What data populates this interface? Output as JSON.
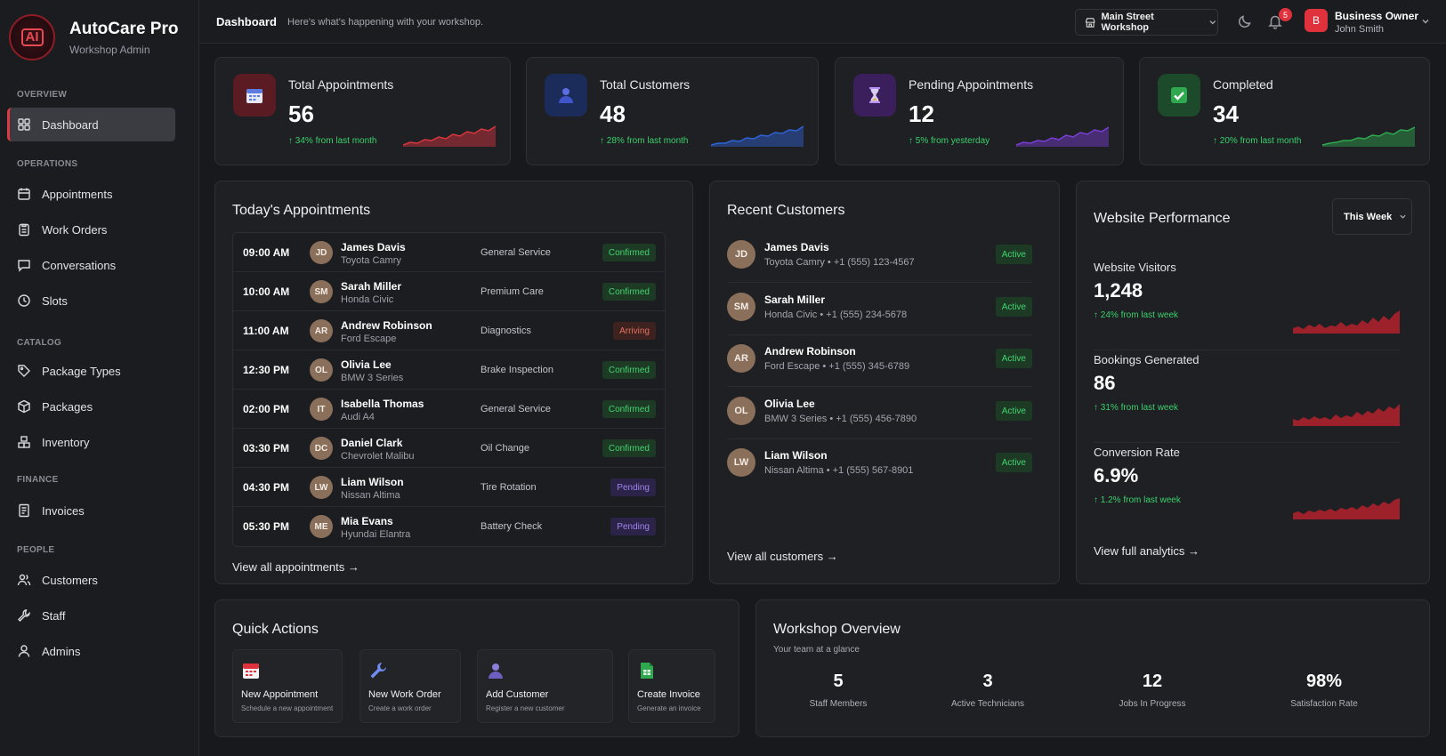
{
  "brand": {
    "logo_text": "AI",
    "title": "AutoCare Pro",
    "subtitle": "Workshop Admin"
  },
  "sidebar": {
    "sections": {
      "overview": "OVERVIEW",
      "operations": "OPERATIONS",
      "catalog": "CATALOG",
      "finance": "FINANCE",
      "people": "PEOPLE"
    },
    "items": {
      "dashboard": "Dashboard",
      "appointments": "Appointments",
      "work_orders": "Work Orders",
      "conversations": "Conversations",
      "slots": "Slots",
      "package_types": "Package Types",
      "packages": "Packages",
      "inventory": "Inventory",
      "invoices": "Invoices",
      "customers": "Customers",
      "staff": "Staff",
      "admins": "Admins"
    }
  },
  "header": {
    "title": "Dashboard",
    "subtitle": "Here's what's happening with your workshop.",
    "workshop": "Main Street Workshop",
    "notifications": "5",
    "user_initial": "B",
    "user_role": "Business Owner",
    "user_name": "John Smith"
  },
  "stats": [
    {
      "label": "Total Appointments",
      "value": "56",
      "delta": "↑ 34% from last month",
      "accent": "#d9363f",
      "icon": "calendar-icon"
    },
    {
      "label": "Total Customers",
      "value": "48",
      "delta": "↑ 28% from last month",
      "accent": "#2f63d6",
      "icon": "user-icon"
    },
    {
      "label": "Pending Appointments",
      "value": "12",
      "delta": "↑ 5% from yesterday",
      "accent": "#7a3fd6",
      "icon": "hourglass-icon"
    },
    {
      "label": "Completed",
      "value": "34",
      "delta": "↑ 20% from last month",
      "accent": "#2fa84f",
      "icon": "check-icon"
    }
  ],
  "appointments": {
    "title": "Today's Appointments",
    "rows": [
      {
        "time": "09:00 AM",
        "initials": "JD",
        "name": "James Davis",
        "car": "Toyota Camry",
        "service": "General Service",
        "status": "Confirmed",
        "kind": "confirmed"
      },
      {
        "time": "10:00 AM",
        "initials": "SM",
        "name": "Sarah Miller",
        "car": "Honda Civic",
        "service": "Premium Care",
        "status": "Confirmed",
        "kind": "confirmed"
      },
      {
        "time": "11:00 AM",
        "initials": "AR",
        "name": "Andrew Robinson",
        "car": "Ford Escape",
        "service": "Diagnostics",
        "status": "Arriving",
        "kind": "arriving"
      },
      {
        "time": "12:30 PM",
        "initials": "OL",
        "name": "Olivia Lee",
        "car": "BMW 3 Series",
        "service": "Brake Inspection",
        "status": "Confirmed",
        "kind": "confirmed"
      },
      {
        "time": "02:00 PM",
        "initials": "IT",
        "name": "Isabella Thomas",
        "car": "Audi A4",
        "service": "General Service",
        "status": "Confirmed",
        "kind": "confirmed"
      },
      {
        "time": "03:30 PM",
        "initials": "DC",
        "name": "Daniel Clark",
        "car": "Chevrolet Malibu",
        "service": "Oil Change",
        "status": "Confirmed",
        "kind": "confirmed"
      },
      {
        "time": "04:30 PM",
        "initials": "LW",
        "name": "Liam Wilson",
        "car": "Nissan Altima",
        "service": "Tire Rotation",
        "status": "Pending",
        "kind": "pending"
      },
      {
        "time": "05:30 PM",
        "initials": "ME",
        "name": "Mia Evans",
        "car": "Hyundai Elantra",
        "service": "Battery Check",
        "status": "Pending",
        "kind": "pending"
      }
    ],
    "view_all": "View all appointments →"
  },
  "customers": {
    "title": "Recent Customers",
    "rows": [
      {
        "initials": "JD",
        "name": "James Davis",
        "meta": "Toyota Camry • +1 (555) 123-4567",
        "status": "Active"
      },
      {
        "initials": "SM",
        "name": "Sarah Miller",
        "meta": "Honda Civic • +1 (555) 234-5678",
        "status": "Active"
      },
      {
        "initials": "AR",
        "name": "Andrew Robinson",
        "meta": "Ford Escape • +1 (555) 345-6789",
        "status": "Active"
      },
      {
        "initials": "OL",
        "name": "Olivia Lee",
        "meta": "BMW 3 Series • +1 (555) 456-7890",
        "status": "Active"
      },
      {
        "initials": "LW",
        "name": "Liam Wilson",
        "meta": "Nissan Altima • +1 (555) 567-8901",
        "status": "Active"
      }
    ],
    "view_all": "View all customers →"
  },
  "performance": {
    "title": "Website Performance",
    "period": "This Week",
    "metrics": [
      {
        "label": "Website Visitors",
        "value": "1,248",
        "delta": "↑ 24% from last week"
      },
      {
        "label": "Bookings Generated",
        "value": "86",
        "delta": "↑ 31% from last week"
      },
      {
        "label": "Conversion Rate",
        "value": "6.9%",
        "delta": "↑ 1.2% from last week"
      }
    ],
    "view_all": "View full analytics →"
  },
  "quick_actions": {
    "title": "Quick Actions",
    "items": [
      {
        "label": "New Appointment",
        "sub": "Schedule a new appointment",
        "icon": "calendar-icon"
      },
      {
        "label": "New Work Order",
        "sub": "Create a work order",
        "icon": "wrench-icon"
      },
      {
        "label": "Add Customer",
        "sub": "Register a new customer",
        "icon": "user-icon"
      },
      {
        "label": "Create Invoice",
        "sub": "Generate an invoice",
        "icon": "invoice-icon"
      }
    ]
  },
  "overview": {
    "title": "Workshop Overview",
    "subtitle": "Your team at a glance",
    "stats": [
      {
        "value": "5",
        "label": "Staff Members"
      },
      {
        "value": "3",
        "label": "Active Technicians"
      },
      {
        "value": "12",
        "label": "Jobs In Progress"
      },
      {
        "value": "98%",
        "label": "Satisfaction Rate"
      }
    ]
  }
}
